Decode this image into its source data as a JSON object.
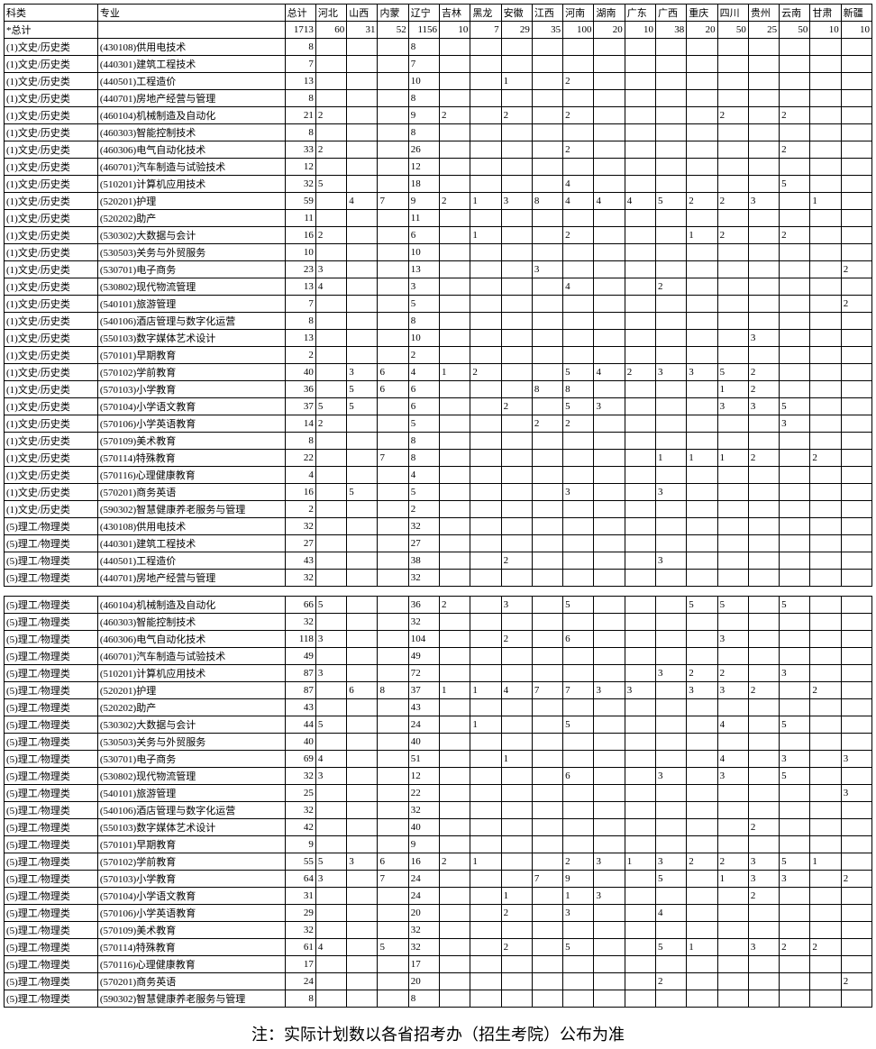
{
  "headers": {
    "category": "科类",
    "major": "专业",
    "provinces": [
      "总计",
      "河北",
      "山西",
      "内蒙",
      "辽宁",
      "吉林",
      "黑龙",
      "安徽",
      "江西",
      "河南",
      "湖南",
      "广东",
      "广西",
      "重庆",
      "四川",
      "贵州",
      "云南",
      "甘肃",
      "新疆"
    ]
  },
  "total_row": {
    "category": "*总计",
    "major": "",
    "values": [
      "1713",
      "60",
      "31",
      "52",
      "1156",
      "10",
      "7",
      "29",
      "35",
      "100",
      "20",
      "10",
      "38",
      "20",
      "50",
      "25",
      "50",
      "10",
      "10"
    ]
  },
  "table1_rows": [
    {
      "cat": "(1)文史/历史类",
      "major": "(430108)供用电技术",
      "v": [
        "8",
        "",
        "",
        "",
        "8",
        "",
        "",
        "",
        "",
        "",
        "",
        "",
        "",
        "",
        "",
        "",
        "",
        "",
        ""
      ]
    },
    {
      "cat": "(1)文史/历史类",
      "major": "(440301)建筑工程技术",
      "v": [
        "7",
        "",
        "",
        "",
        "7",
        "",
        "",
        "",
        "",
        "",
        "",
        "",
        "",
        "",
        "",
        "",
        "",
        "",
        ""
      ]
    },
    {
      "cat": "(1)文史/历史类",
      "major": "(440501)工程造价",
      "v": [
        "13",
        "",
        "",
        "",
        "10",
        "",
        "",
        "1",
        "",
        "2",
        "",
        "",
        "",
        "",
        "",
        "",
        "",
        "",
        ""
      ]
    },
    {
      "cat": "(1)文史/历史类",
      "major": "(440701)房地产经营与管理",
      "v": [
        "8",
        "",
        "",
        "",
        "8",
        "",
        "",
        "",
        "",
        "",
        "",
        "",
        "",
        "",
        "",
        "",
        "",
        "",
        ""
      ]
    },
    {
      "cat": "(1)文史/历史类",
      "major": "(460104)机械制造及自动化",
      "v": [
        "21",
        "2",
        "",
        "",
        "9",
        "2",
        "",
        "2",
        "",
        "2",
        "",
        "",
        "",
        "",
        "2",
        "",
        "2",
        "",
        ""
      ]
    },
    {
      "cat": "(1)文史/历史类",
      "major": "(460303)智能控制技术",
      "v": [
        "8",
        "",
        "",
        "",
        "8",
        "",
        "",
        "",
        "",
        "",
        "",
        "",
        "",
        "",
        "",
        "",
        "",
        "",
        ""
      ]
    },
    {
      "cat": "(1)文史/历史类",
      "major": "(460306)电气自动化技术",
      "v": [
        "33",
        "2",
        "",
        "",
        "26",
        "",
        "",
        "",
        "",
        "2",
        "",
        "",
        "",
        "",
        "",
        "",
        "2",
        "",
        ""
      ]
    },
    {
      "cat": "(1)文史/历史类",
      "major": "(460701)汽车制造与试验技术",
      "v": [
        "12",
        "",
        "",
        "",
        "12",
        "",
        "",
        "",
        "",
        "",
        "",
        "",
        "",
        "",
        "",
        "",
        "",
        "",
        ""
      ]
    },
    {
      "cat": "(1)文史/历史类",
      "major": "(510201)计算机应用技术",
      "v": [
        "32",
        "5",
        "",
        "",
        "18",
        "",
        "",
        "",
        "",
        "4",
        "",
        "",
        "",
        "",
        "",
        "",
        "5",
        "",
        ""
      ]
    },
    {
      "cat": "(1)文史/历史类",
      "major": "(520201)护理",
      "v": [
        "59",
        "",
        "4",
        "7",
        "9",
        "2",
        "1",
        "3",
        "8",
        "4",
        "4",
        "4",
        "5",
        "2",
        "2",
        "3",
        "",
        "1",
        ""
      ]
    },
    {
      "cat": "(1)文史/历史类",
      "major": "(520202)助产",
      "v": [
        "11",
        "",
        "",
        "",
        "11",
        "",
        "",
        "",
        "",
        "",
        "",
        "",
        "",
        "",
        "",
        "",
        "",
        "",
        ""
      ]
    },
    {
      "cat": "(1)文史/历史类",
      "major": "(530302)大数据与会计",
      "v": [
        "16",
        "2",
        "",
        "",
        "6",
        "",
        "1",
        "",
        "",
        "2",
        "",
        "",
        "",
        "1",
        "2",
        "",
        "2",
        "",
        ""
      ]
    },
    {
      "cat": "(1)文史/历史类",
      "major": "(530503)关务与外贸服务",
      "v": [
        "10",
        "",
        "",
        "",
        "10",
        "",
        "",
        "",
        "",
        "",
        "",
        "",
        "",
        "",
        "",
        "",
        "",
        "",
        ""
      ]
    },
    {
      "cat": "(1)文史/历史类",
      "major": "(530701)电子商务",
      "v": [
        "23",
        "3",
        "",
        "",
        "13",
        "",
        "",
        "",
        "3",
        "",
        "",
        "",
        "",
        "",
        "",
        "",
        "",
        "",
        "2"
      ]
    },
    {
      "cat": "(1)文史/历史类",
      "major": "(530802)现代物流管理",
      "v": [
        "13",
        "4",
        "",
        "",
        "3",
        "",
        "",
        "",
        "",
        "4",
        "",
        "",
        "2",
        "",
        "",
        "",
        "",
        "",
        ""
      ]
    },
    {
      "cat": "(1)文史/历史类",
      "major": "(540101)旅游管理",
      "v": [
        "7",
        "",
        "",
        "",
        "5",
        "",
        "",
        "",
        "",
        "",
        "",
        "",
        "",
        "",
        "",
        "",
        "",
        "",
        "2"
      ]
    },
    {
      "cat": "(1)文史/历史类",
      "major": "(540106)酒店管理与数字化运营",
      "v": [
        "8",
        "",
        "",
        "",
        "8",
        "",
        "",
        "",
        "",
        "",
        "",
        "",
        "",
        "",
        "",
        "",
        "",
        "",
        ""
      ]
    },
    {
      "cat": "(1)文史/历史类",
      "major": "(550103)数字媒体艺术设计",
      "v": [
        "13",
        "",
        "",
        "",
        "10",
        "",
        "",
        "",
        "",
        "",
        "",
        "",
        "",
        "",
        "",
        "3",
        "",
        "",
        ""
      ]
    },
    {
      "cat": "(1)文史/历史类",
      "major": "(570101)早期教育",
      "v": [
        "2",
        "",
        "",
        "",
        "2",
        "",
        "",
        "",
        "",
        "",
        "",
        "",
        "",
        "",
        "",
        "",
        "",
        "",
        ""
      ]
    },
    {
      "cat": "(1)文史/历史类",
      "major": "(570102)学前教育",
      "v": [
        "40",
        "",
        "3",
        "6",
        "4",
        "1",
        "2",
        "",
        "",
        "5",
        "4",
        "2",
        "3",
        "3",
        "5",
        "2",
        "",
        "",
        ""
      ]
    },
    {
      "cat": "(1)文史/历史类",
      "major": "(570103)小学教育",
      "v": [
        "36",
        "",
        "5",
        "6",
        "6",
        "",
        "",
        "",
        "8",
        "8",
        "",
        "",
        "",
        "",
        "1",
        "2",
        "",
        "",
        ""
      ]
    },
    {
      "cat": "(1)文史/历史类",
      "major": "(570104)小学语文教育",
      "v": [
        "37",
        "5",
        "5",
        "",
        "6",
        "",
        "",
        "2",
        "",
        "5",
        "3",
        "",
        "",
        "",
        "3",
        "3",
        "5",
        "",
        ""
      ]
    },
    {
      "cat": "(1)文史/历史类",
      "major": "(570106)小学英语教育",
      "v": [
        "14",
        "2",
        "",
        "",
        "5",
        "",
        "",
        "",
        "2",
        "2",
        "",
        "",
        "",
        "",
        "",
        "",
        "3",
        "",
        ""
      ]
    },
    {
      "cat": "(1)文史/历史类",
      "major": "(570109)美术教育",
      "v": [
        "8",
        "",
        "",
        "",
        "8",
        "",
        "",
        "",
        "",
        "",
        "",
        "",
        "",
        "",
        "",
        "",
        "",
        "",
        ""
      ]
    },
    {
      "cat": "(1)文史/历史类",
      "major": "(570114)特殊教育",
      "v": [
        "22",
        "",
        "",
        "7",
        "8",
        "",
        "",
        "",
        "",
        "",
        "",
        "",
        "1",
        "1",
        "1",
        "2",
        "",
        "2",
        ""
      ]
    },
    {
      "cat": "(1)文史/历史类",
      "major": "(570116)心理健康教育",
      "v": [
        "4",
        "",
        "",
        "",
        "4",
        "",
        "",
        "",
        "",
        "",
        "",
        "",
        "",
        "",
        "",
        "",
        "",
        "",
        ""
      ]
    },
    {
      "cat": "(1)文史/历史类",
      "major": "(570201)商务英语",
      "v": [
        "16",
        "",
        "5",
        "",
        "5",
        "",
        "",
        "",
        "",
        "3",
        "",
        "",
        "3",
        "",
        "",
        "",
        "",
        "",
        ""
      ]
    },
    {
      "cat": "(1)文史/历史类",
      "major": "(590302)智慧健康养老服务与管理",
      "v": [
        "2",
        "",
        "",
        "",
        "2",
        "",
        "",
        "",
        "",
        "",
        "",
        "",
        "",
        "",
        "",
        "",
        "",
        "",
        ""
      ]
    },
    {
      "cat": "(5)理工/物理类",
      "major": "(430108)供用电技术",
      "v": [
        "32",
        "",
        "",
        "",
        "32",
        "",
        "",
        "",
        "",
        "",
        "",
        "",
        "",
        "",
        "",
        "",
        "",
        "",
        ""
      ]
    },
    {
      "cat": "(5)理工/物理类",
      "major": "(440301)建筑工程技术",
      "v": [
        "27",
        "",
        "",
        "",
        "27",
        "",
        "",
        "",
        "",
        "",
        "",
        "",
        "",
        "",
        "",
        "",
        "",
        "",
        ""
      ]
    },
    {
      "cat": "(5)理工/物理类",
      "major": "(440501)工程造价",
      "v": [
        "43",
        "",
        "",
        "",
        "38",
        "",
        "",
        "2",
        "",
        "",
        "",
        "",
        "3",
        "",
        "",
        "",
        "",
        "",
        ""
      ]
    },
    {
      "cat": "(5)理工/物理类",
      "major": "(440701)房地产经营与管理",
      "v": [
        "32",
        "",
        "",
        "",
        "32",
        "",
        "",
        "",
        "",
        "",
        "",
        "",
        "",
        "",
        "",
        "",
        "",
        "",
        ""
      ]
    }
  ],
  "table2_rows": [
    {
      "cat": "(5)理工/物理类",
      "major": "(460104)机械制造及自动化",
      "v": [
        "66",
        "5",
        "",
        "",
        "36",
        "2",
        "",
        "3",
        "",
        "5",
        "",
        "",
        "",
        "5",
        "5",
        "",
        "5",
        "",
        ""
      ]
    },
    {
      "cat": "(5)理工/物理类",
      "major": "(460303)智能控制技术",
      "v": [
        "32",
        "",
        "",
        "",
        "32",
        "",
        "",
        "",
        "",
        "",
        "",
        "",
        "",
        "",
        "",
        "",
        "",
        "",
        ""
      ]
    },
    {
      "cat": "(5)理工/物理类",
      "major": "(460306)电气自动化技术",
      "v": [
        "118",
        "3",
        "",
        "",
        "104",
        "",
        "",
        "2",
        "",
        "6",
        "",
        "",
        "",
        "",
        "3",
        "",
        "",
        "",
        ""
      ]
    },
    {
      "cat": "(5)理工/物理类",
      "major": "(460701)汽车制造与试验技术",
      "v": [
        "49",
        "",
        "",
        "",
        "49",
        "",
        "",
        "",
        "",
        "",
        "",
        "",
        "",
        "",
        "",
        "",
        "",
        "",
        ""
      ]
    },
    {
      "cat": "(5)理工/物理类",
      "major": "(510201)计算机应用技术",
      "v": [
        "87",
        "3",
        "",
        "",
        "72",
        "",
        "",
        "",
        "",
        "",
        "",
        "",
        "3",
        "2",
        "2",
        "",
        "3",
        "",
        ""
      ]
    },
    {
      "cat": "(5)理工/物理类",
      "major": "(520201)护理",
      "v": [
        "87",
        "",
        "6",
        "8",
        "37",
        "1",
        "1",
        "4",
        "7",
        "7",
        "3",
        "3",
        "",
        "3",
        "3",
        "2",
        "",
        "2",
        ""
      ]
    },
    {
      "cat": "(5)理工/物理类",
      "major": "(520202)助产",
      "v": [
        "43",
        "",
        "",
        "",
        "43",
        "",
        "",
        "",
        "",
        "",
        "",
        "",
        "",
        "",
        "",
        "",
        "",
        "",
        ""
      ]
    },
    {
      "cat": "(5)理工/物理类",
      "major": "(530302)大数据与会计",
      "v": [
        "44",
        "5",
        "",
        "",
        "24",
        "",
        "1",
        "",
        "",
        "5",
        "",
        "",
        "",
        "",
        "4",
        "",
        "5",
        "",
        ""
      ]
    },
    {
      "cat": "(5)理工/物理类",
      "major": "(530503)关务与外贸服务",
      "v": [
        "40",
        "",
        "",
        "",
        "40",
        "",
        "",
        "",
        "",
        "",
        "",
        "",
        "",
        "",
        "",
        "",
        "",
        "",
        ""
      ]
    },
    {
      "cat": "(5)理工/物理类",
      "major": "(530701)电子商务",
      "v": [
        "69",
        "4",
        "",
        "",
        "51",
        "",
        "",
        "1",
        "",
        "",
        "",
        "",
        "",
        "",
        "4",
        "",
        "3",
        "",
        "3"
      ]
    },
    {
      "cat": "(5)理工/物理类",
      "major": "(530802)现代物流管理",
      "v": [
        "32",
        "3",
        "",
        "",
        "12",
        "",
        "",
        "",
        "",
        "6",
        "",
        "",
        "3",
        "",
        "3",
        "",
        "5",
        "",
        ""
      ]
    },
    {
      "cat": "(5)理工/物理类",
      "major": "(540101)旅游管理",
      "v": [
        "25",
        "",
        "",
        "",
        "22",
        "",
        "",
        "",
        "",
        "",
        "",
        "",
        "",
        "",
        "",
        "",
        "",
        "",
        "3"
      ]
    },
    {
      "cat": "(5)理工/物理类",
      "major": "(540106)酒店管理与数字化运营",
      "v": [
        "32",
        "",
        "",
        "",
        "32",
        "",
        "",
        "",
        "",
        "",
        "",
        "",
        "",
        "",
        "",
        "",
        "",
        "",
        ""
      ]
    },
    {
      "cat": "(5)理工/物理类",
      "major": "(550103)数字媒体艺术设计",
      "v": [
        "42",
        "",
        "",
        "",
        "40",
        "",
        "",
        "",
        "",
        "",
        "",
        "",
        "",
        "",
        "",
        "2",
        "",
        "",
        ""
      ]
    },
    {
      "cat": "(5)理工/物理类",
      "major": "(570101)早期教育",
      "v": [
        "9",
        "",
        "",
        "",
        "9",
        "",
        "",
        "",
        "",
        "",
        "",
        "",
        "",
        "",
        "",
        "",
        "",
        "",
        ""
      ]
    },
    {
      "cat": "(5)理工/物理类",
      "major": "(570102)学前教育",
      "v": [
        "55",
        "5",
        "3",
        "6",
        "16",
        "2",
        "1",
        "",
        "",
        "2",
        "3",
        "1",
        "3",
        "2",
        "2",
        "3",
        "5",
        "1",
        ""
      ]
    },
    {
      "cat": "(5)理工/物理类",
      "major": "(570103)小学教育",
      "v": [
        "64",
        "3",
        "",
        "7",
        "24",
        "",
        "",
        "",
        "7",
        "9",
        "",
        "",
        "5",
        "",
        "1",
        "3",
        "3",
        "",
        "2"
      ]
    },
    {
      "cat": "(5)理工/物理类",
      "major": "(570104)小学语文教育",
      "v": [
        "31",
        "",
        "",
        "",
        "24",
        "",
        "",
        "1",
        "",
        "1",
        "3",
        "",
        "",
        "",
        "",
        "2",
        "",
        "",
        ""
      ]
    },
    {
      "cat": "(5)理工/物理类",
      "major": "(570106)小学英语教育",
      "v": [
        "29",
        "",
        "",
        "",
        "20",
        "",
        "",
        "2",
        "",
        "3",
        "",
        "",
        "4",
        "",
        "",
        "",
        "",
        "",
        ""
      ]
    },
    {
      "cat": "(5)理工/物理类",
      "major": "(570109)美术教育",
      "v": [
        "32",
        "",
        "",
        "",
        "32",
        "",
        "",
        "",
        "",
        "",
        "",
        "",
        "",
        "",
        "",
        "",
        "",
        "",
        ""
      ]
    },
    {
      "cat": "(5)理工/物理类",
      "major": "(570114)特殊教育",
      "v": [
        "61",
        "4",
        "",
        "5",
        "32",
        "",
        "",
        "2",
        "",
        "5",
        "",
        "",
        "5",
        "1",
        "",
        "3",
        "2",
        "2",
        ""
      ]
    },
    {
      "cat": "(5)理工/物理类",
      "major": "(570116)心理健康教育",
      "v": [
        "17",
        "",
        "",
        "",
        "17",
        "",
        "",
        "",
        "",
        "",
        "",
        "",
        "",
        "",
        "",
        "",
        "",
        "",
        ""
      ]
    },
    {
      "cat": "(5)理工/物理类",
      "major": "(570201)商务英语",
      "v": [
        "24",
        "",
        "",
        "",
        "20",
        "",
        "",
        "",
        "",
        "",
        "",
        "",
        "2",
        "",
        "",
        "",
        "",
        "",
        "2"
      ]
    },
    {
      "cat": "(5)理工/物理类",
      "major": "(590302)智慧健康养老服务与管理",
      "v": [
        "8",
        "",
        "",
        "",
        "8",
        "",
        "",
        "",
        "",
        "",
        "",
        "",
        "",
        "",
        "",
        "",
        "",
        "",
        ""
      ]
    }
  ],
  "footnote": "注：实际计划数以各省招考办（招生考院）公布为准"
}
